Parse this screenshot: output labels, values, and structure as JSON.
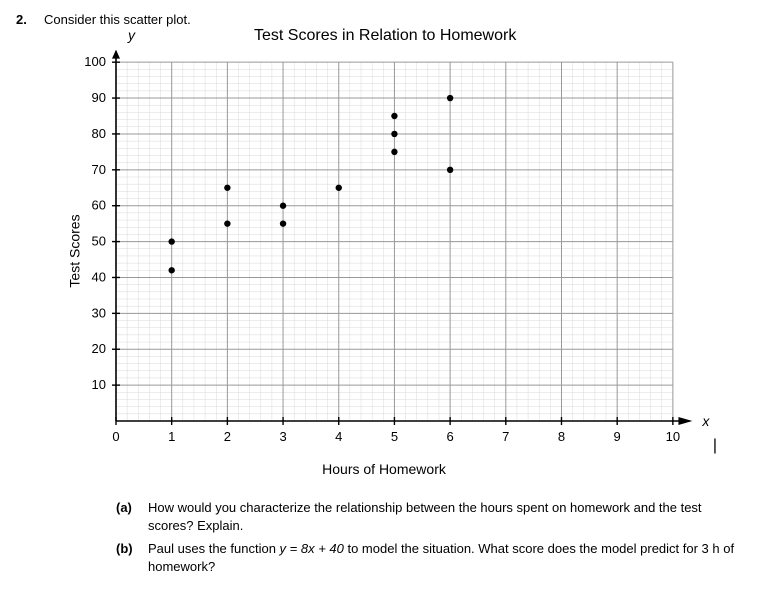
{
  "problem": {
    "number": "2.",
    "prompt": "Consider this scatter plot."
  },
  "chart": {
    "type": "scatter",
    "title": "Test Scores in Relation to Homework",
    "y_var": "y",
    "x_var": "x",
    "xlabel": "Hours of Homework",
    "ylabel": "Test Scores",
    "xlim": [
      0,
      10.2
    ],
    "ylim": [
      0,
      102
    ],
    "x_major_ticks": [
      0,
      1,
      2,
      3,
      4,
      5,
      6,
      7,
      8,
      9,
      10
    ],
    "y_major_ticks": [
      10,
      20,
      30,
      40,
      50,
      60,
      70,
      80,
      90,
      100
    ],
    "x_minor_step": 0.2,
    "y_minor_step": 2,
    "minor_grid_color": "#d9d9d9",
    "major_grid_color": "#999999",
    "axis_color": "#000000",
    "point_color": "#000000",
    "point_radius": 3.2,
    "tick_fontsize": 13,
    "label_fontsize": 14,
    "title_fontsize": 16,
    "background_color": "#ffffff",
    "points": [
      {
        "x": 1,
        "y": 42
      },
      {
        "x": 1,
        "y": 50
      },
      {
        "x": 2,
        "y": 55
      },
      {
        "x": 2,
        "y": 65
      },
      {
        "x": 3,
        "y": 55
      },
      {
        "x": 3,
        "y": 60
      },
      {
        "x": 4,
        "y": 65
      },
      {
        "x": 5,
        "y": 75
      },
      {
        "x": 5,
        "y": 80
      },
      {
        "x": 5,
        "y": 85
      },
      {
        "x": 6,
        "y": 70
      },
      {
        "x": 6,
        "y": 90
      }
    ]
  },
  "questions": {
    "a": {
      "label": "(a)",
      "text": "How would you characterize the relationship between the hours spent on homework and the test scores? Explain."
    },
    "b": {
      "label": "(b)",
      "text_prefix": "Paul uses the function ",
      "text_eq": "y = 8x + 40",
      "text_suffix": " to model the situation. What score does the model predict for 3 h of homework?"
    }
  },
  "cursor": "|"
}
